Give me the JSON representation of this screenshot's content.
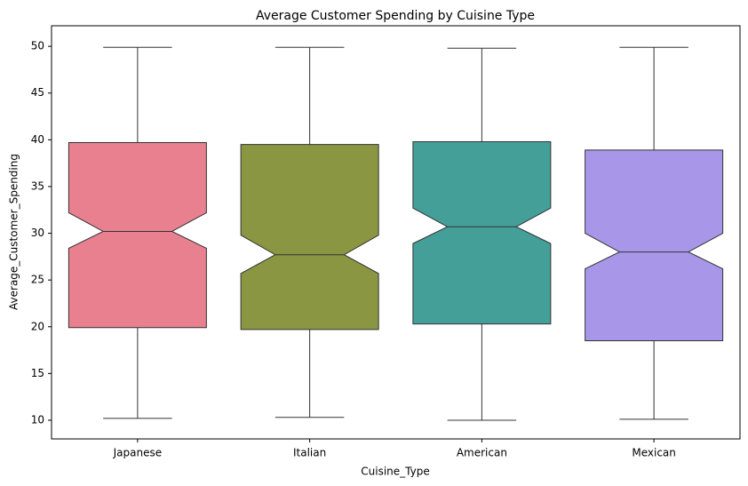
{
  "chart_data": {
    "type": "boxplot",
    "title": "Average Customer Spending by Cuisine Type",
    "x_label": "Cuisine_Type",
    "y_label": "Average_Customer_Spending",
    "categories": [
      "Japanese",
      "Italian",
      "American",
      "Mexican"
    ],
    "boxes": [
      {
        "color": "#e8808f",
        "whislo": 10.2,
        "q1": 19.9,
        "notch_low": 28.4,
        "median": 30.2,
        "notch_high": 32.2,
        "q3": 39.7,
        "whishi": 49.9
      },
      {
        "color": "#8a9641",
        "whislo": 10.3,
        "q1": 19.7,
        "notch_low": 25.7,
        "median": 27.7,
        "notch_high": 29.8,
        "q3": 39.5,
        "whishi": 49.9
      },
      {
        "color": "#449f99",
        "whislo": 10.0,
        "q1": 20.3,
        "notch_low": 28.9,
        "median": 30.7,
        "notch_high": 32.7,
        "q3": 39.8,
        "whishi": 49.8
      },
      {
        "color": "#a897e8",
        "whislo": 10.1,
        "q1": 18.5,
        "notch_low": 26.2,
        "median": 28.0,
        "notch_high": 30.0,
        "q3": 38.9,
        "whishi": 49.9
      }
    ],
    "ylim": [
      8,
      52.2
    ],
    "yticks": [
      10,
      15,
      20,
      25,
      30,
      35,
      40,
      45,
      50
    ]
  }
}
